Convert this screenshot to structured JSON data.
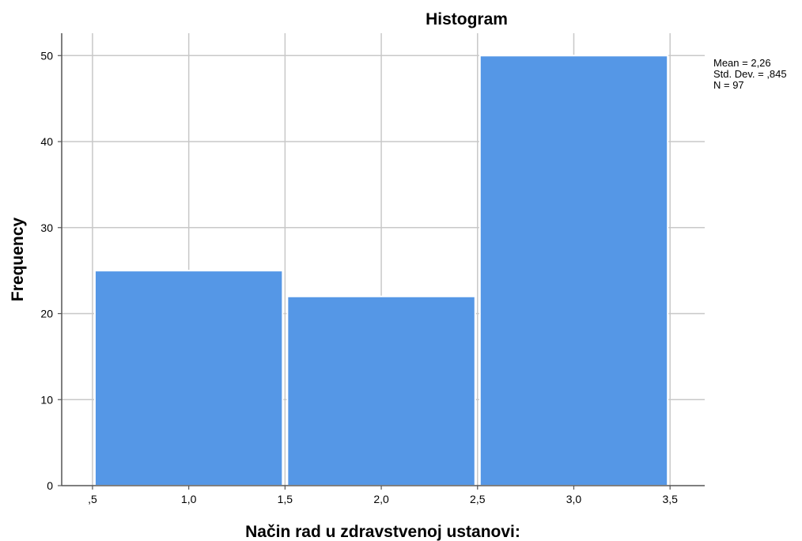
{
  "chart_data": {
    "type": "bar",
    "title": "Histogram",
    "xlabel": "Način rad u zdravstvenoj ustanovi:",
    "ylabel": "Frequency",
    "bins": [
      {
        "start": 0.5,
        "end": 1.5,
        "value": 25
      },
      {
        "start": 1.5,
        "end": 2.5,
        "value": 22
      },
      {
        "start": 2.5,
        "end": 3.5,
        "value": 50
      }
    ],
    "x_ticks": [
      0.5,
      1.0,
      1.5,
      2.0,
      2.5,
      3.0,
      3.5
    ],
    "x_tick_labels": [
      ",5",
      "1,0",
      "1,5",
      "2,0",
      "2,5",
      "3,0",
      "3,5"
    ],
    "y_ticks": [
      0,
      10,
      20,
      30,
      40,
      50
    ],
    "y_tick_labels": [
      "0",
      "10",
      "20",
      "30",
      "40",
      "50"
    ],
    "xlim": [
      0.34,
      3.68
    ],
    "ylim": [
      0,
      52.6
    ],
    "grid": true,
    "bar_color": "#5597e6",
    "stats": [
      "Mean = 2,26",
      "Std. Dev. = ,845",
      "N = 97"
    ],
    "stats_placement": "top-right"
  }
}
